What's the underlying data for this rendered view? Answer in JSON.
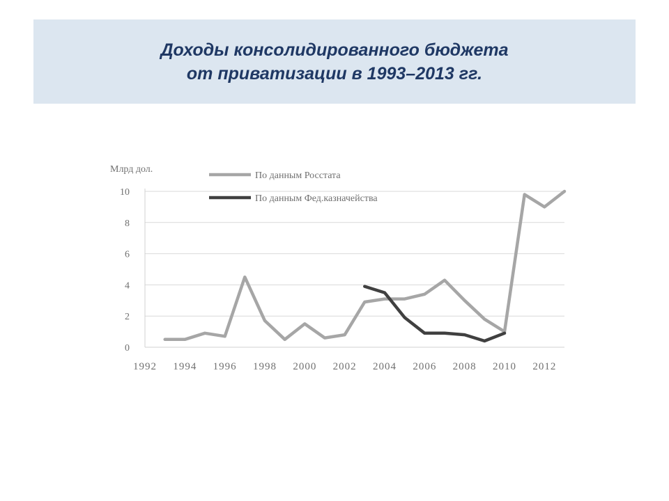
{
  "slide": {
    "title_line1": "Доходы консолидированного бюджета",
    "title_line2": "от приватизации в 1993–2013 гг."
  },
  "chart_data": {
    "type": "line",
    "title": "",
    "ylabel": "Млрд дол.",
    "xlabel": "",
    "xlim": [
      1992,
      2013
    ],
    "ylim": [
      0,
      10
    ],
    "xticks": [
      1992,
      1994,
      1996,
      1998,
      2000,
      2002,
      2004,
      2006,
      2008,
      2010,
      2012
    ],
    "yticks": [
      0,
      2,
      4,
      6,
      8,
      10
    ],
    "grid": true,
    "legend_position": "top-left",
    "series": [
      {
        "name": "По данным Росстата",
        "color": "#a6a6a6",
        "x": [
          1993,
          1994,
          1995,
          1996,
          1997,
          1998,
          1999,
          2000,
          2001,
          2002,
          2003,
          2004,
          2005,
          2006,
          2007,
          2008,
          2009,
          2010,
          2011,
          2012,
          2013
        ],
        "y": [
          0.5,
          0.5,
          0.9,
          0.7,
          4.5,
          1.7,
          0.5,
          1.5,
          0.6,
          0.8,
          2.9,
          3.1,
          3.1,
          3.4,
          4.3,
          3.0,
          1.8,
          1.0,
          9.8,
          9.0,
          10.0
        ]
      },
      {
        "name": "По данным Фед.казначейства",
        "color": "#404040",
        "x": [
          2003,
          2004,
          2005,
          2006,
          2007,
          2008,
          2009,
          2010
        ],
        "y": [
          3.9,
          3.5,
          1.9,
          0.9,
          0.9,
          0.8,
          0.4,
          0.9
        ]
      }
    ]
  }
}
